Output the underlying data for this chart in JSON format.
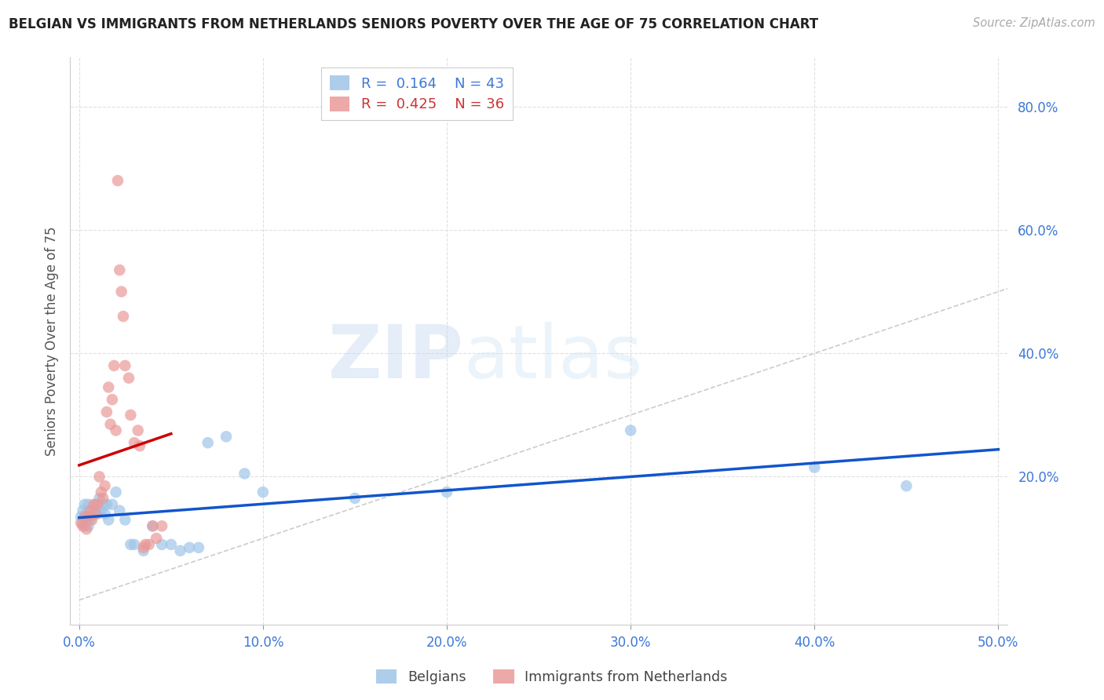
{
  "title": "BELGIAN VS IMMIGRANTS FROM NETHERLANDS SENIORS POVERTY OVER THE AGE OF 75 CORRELATION CHART",
  "source": "Source: ZipAtlas.com",
  "ylabel": "Seniors Poverty Over the Age of 75",
  "xlabel_ticks": [
    "0.0%",
    "10.0%",
    "20.0%",
    "30.0%",
    "40.0%",
    "50.0%"
  ],
  "xlabel_vals": [
    0.0,
    0.1,
    0.2,
    0.3,
    0.4,
    0.5
  ],
  "ylabel_ticks": [
    "20.0%",
    "40.0%",
    "60.0%",
    "80.0%"
  ],
  "ylabel_vals": [
    0.2,
    0.4,
    0.6,
    0.8
  ],
  "xlim": [
    -0.005,
    0.505
  ],
  "ylim": [
    -0.04,
    0.88
  ],
  "belgians_R": "0.164",
  "belgians_N": "43",
  "netherlands_R": "0.425",
  "netherlands_N": "36",
  "legend_labels": [
    "Belgians",
    "Immigrants from Netherlands"
  ],
  "blue_color": "#9fc5e8",
  "pink_color": "#ea9999",
  "line_blue": "#1155cc",
  "line_pink": "#cc0000",
  "watermark_zip": "ZIP",
  "watermark_atlas": "atlas",
  "belgians_x": [
    0.001,
    0.002,
    0.002,
    0.003,
    0.003,
    0.004,
    0.004,
    0.005,
    0.005,
    0.006,
    0.006,
    0.007,
    0.008,
    0.009,
    0.01,
    0.011,
    0.012,
    0.013,
    0.014,
    0.015,
    0.016,
    0.018,
    0.02,
    0.022,
    0.025,
    0.028,
    0.03,
    0.035,
    0.04,
    0.045,
    0.05,
    0.055,
    0.06,
    0.065,
    0.07,
    0.08,
    0.09,
    0.1,
    0.15,
    0.2,
    0.3,
    0.4,
    0.45
  ],
  "belgians_y": [
    0.135,
    0.145,
    0.125,
    0.155,
    0.12,
    0.14,
    0.13,
    0.12,
    0.155,
    0.14,
    0.13,
    0.145,
    0.14,
    0.155,
    0.14,
    0.165,
    0.145,
    0.155,
    0.14,
    0.155,
    0.13,
    0.155,
    0.175,
    0.145,
    0.13,
    0.09,
    0.09,
    0.08,
    0.12,
    0.09,
    0.09,
    0.08,
    0.085,
    0.085,
    0.255,
    0.265,
    0.205,
    0.175,
    0.165,
    0.175,
    0.275,
    0.215,
    0.185
  ],
  "netherlands_x": [
    0.001,
    0.002,
    0.003,
    0.004,
    0.005,
    0.006,
    0.007,
    0.008,
    0.009,
    0.01,
    0.011,
    0.012,
    0.013,
    0.014,
    0.015,
    0.016,
    0.017,
    0.018,
    0.019,
    0.02,
    0.021,
    0.022,
    0.023,
    0.024,
    0.025,
    0.027,
    0.028,
    0.03,
    0.032,
    0.033,
    0.035,
    0.036,
    0.038,
    0.04,
    0.042,
    0.045
  ],
  "netherlands_y": [
    0.125,
    0.12,
    0.135,
    0.115,
    0.135,
    0.145,
    0.13,
    0.155,
    0.14,
    0.155,
    0.2,
    0.175,
    0.165,
    0.185,
    0.305,
    0.345,
    0.285,
    0.325,
    0.38,
    0.275,
    0.68,
    0.535,
    0.5,
    0.46,
    0.38,
    0.36,
    0.3,
    0.255,
    0.275,
    0.25,
    0.085,
    0.09,
    0.09,
    0.12,
    0.1,
    0.12
  ],
  "grid_color": "#e0e0e0",
  "background_color": "#ffffff"
}
